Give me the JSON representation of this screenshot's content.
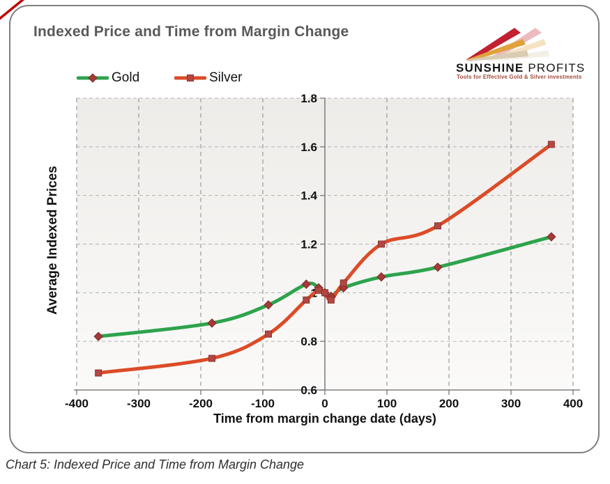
{
  "frame": {
    "caption": "Chart 5: Indexed Price and Time from Margin Change",
    "colors": {
      "border": "#7f7f7f",
      "annotation_red": "#c00000",
      "title_text": "#595959"
    }
  },
  "header": {
    "logo": {
      "name_primary": "SUNSHINE",
      "name_secondary": " PROFITS",
      "tagline": "Tools for Effective Gold & Silver investments",
      "colors": {
        "ray_red": "#c22132",
        "ray_gold": "#e0a23c",
        "ray_beige": "#d8ccb3",
        "tagline": "#a14a38",
        "name_text": "#151515"
      }
    }
  },
  "chart_data": {
    "type": "line",
    "title": "Indexed Price and Time from Margin Change",
    "xlabel": "Time from margin change date (days)",
    "ylabel": "Average Indexed Prices",
    "xlim": [
      -400,
      400
    ],
    "ylim": [
      0.6,
      1.8
    ],
    "grid": "dashed",
    "legend_position": "top-left",
    "x_ticks": [
      -400,
      -300,
      -200,
      -100,
      0,
      100,
      200,
      300,
      400
    ],
    "y_ticks": [
      {
        "value": 0.6,
        "label": "0.6"
      },
      {
        "value": 0.8,
        "label": "0.8"
      },
      {
        "value": 1.0,
        "label": "1"
      },
      {
        "value": 1.2,
        "label": "1.2"
      },
      {
        "value": 1.4,
        "label": "1.4"
      },
      {
        "value": 1.6,
        "label": "1.6"
      },
      {
        "value": 1.8,
        "label": "1.8"
      }
    ],
    "x": [
      -365,
      -182,
      -91,
      -30,
      -10,
      0,
      10,
      30,
      91,
      182,
      365
    ],
    "series": [
      {
        "name": "Gold",
        "color": "#2ea34d",
        "marker": "diamond",
        "marker_color": "#a53a38",
        "marker_edge": "#7e2b29",
        "values": [
          0.82,
          0.875,
          0.95,
          1.035,
          1.02,
          1.0,
          0.985,
          1.02,
          1.065,
          1.105,
          1.23
        ]
      },
      {
        "name": "Silver",
        "color": "#dc4b27",
        "marker": "square",
        "marker_color": "#b24743",
        "marker_edge": "#8c3330",
        "values": [
          0.67,
          0.73,
          0.83,
          0.97,
          1.01,
          1.0,
          0.97,
          1.04,
          1.2,
          1.275,
          1.61
        ]
      }
    ]
  }
}
